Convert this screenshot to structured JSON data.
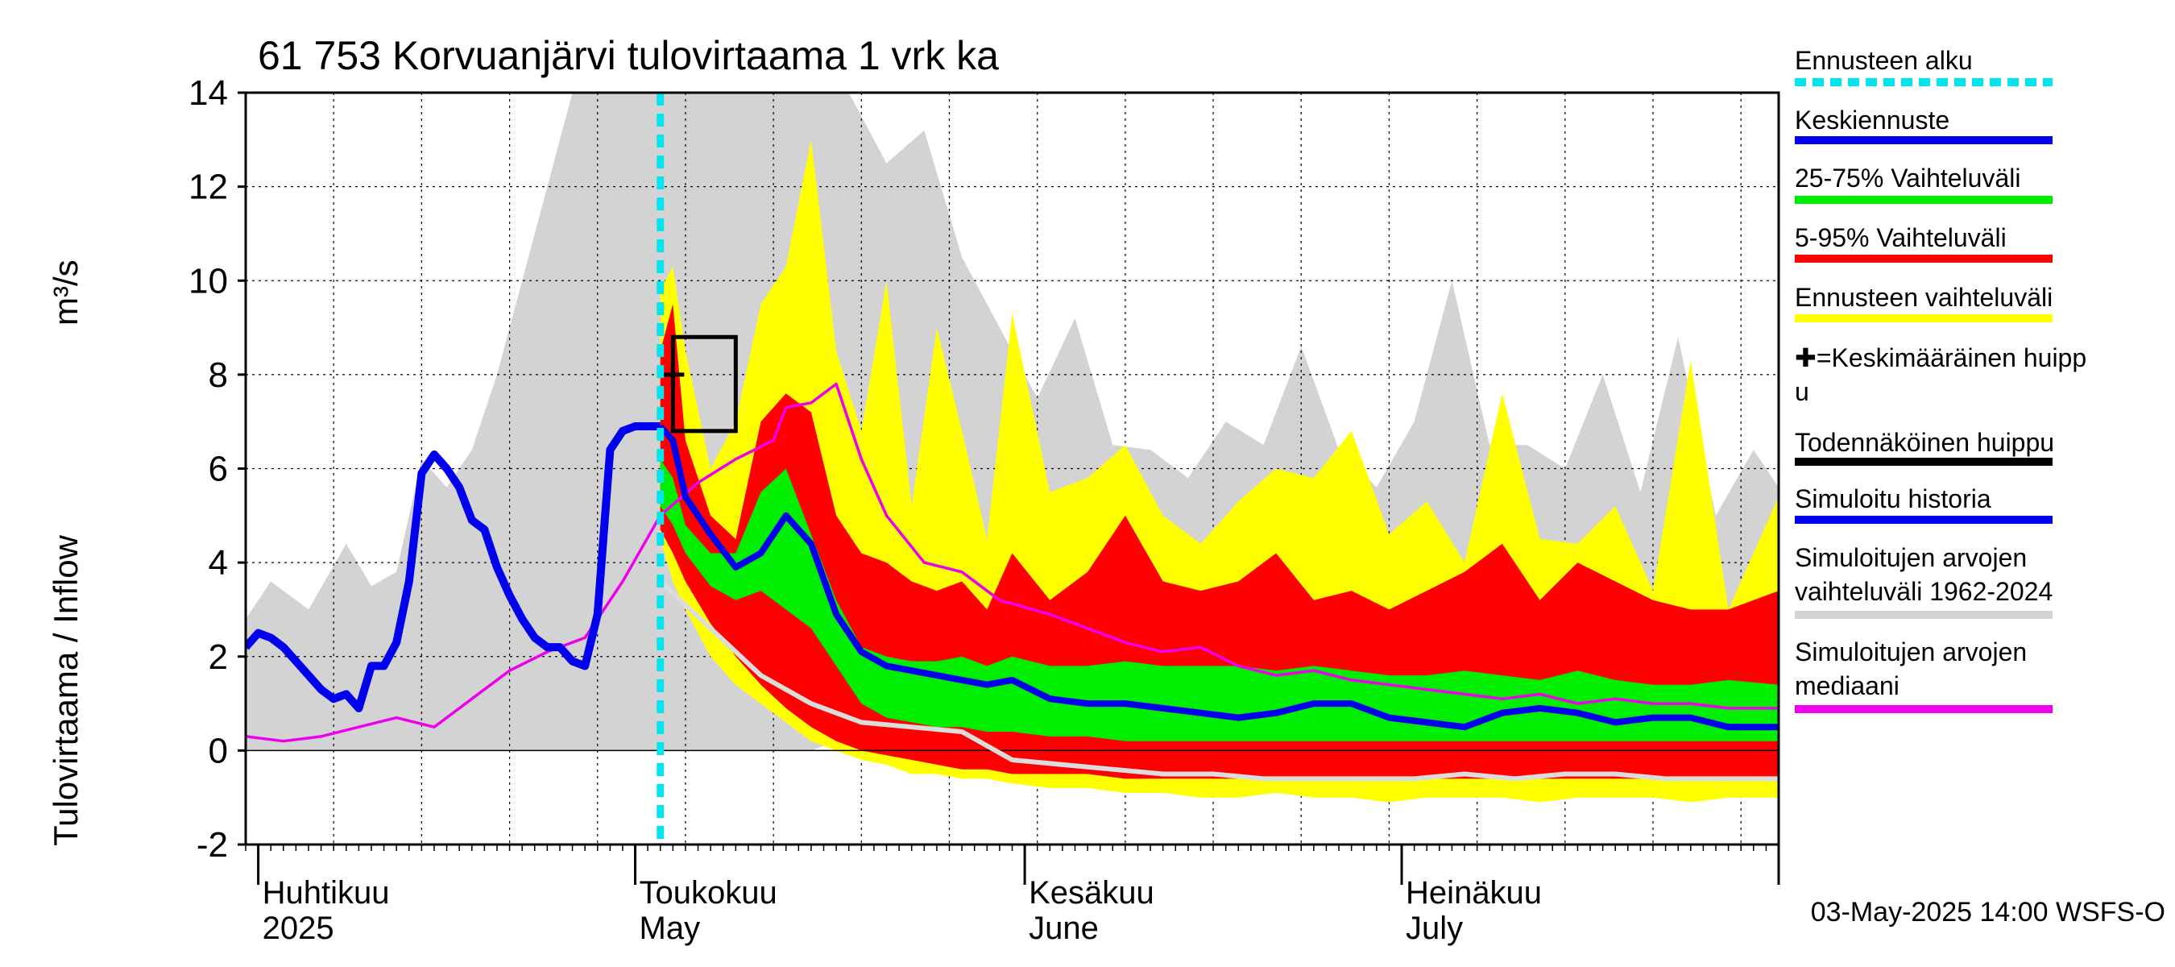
{
  "chart_data": {
    "type": "area",
    "title": "61 753 Korvuanjärvi tulovirtaama 1 vrk ka",
    "ylabel_left": "Tulovirtaama / Inflow",
    "ylabel_unit": "m³/s",
    "ylim": [
      -2,
      14
    ],
    "yticks": [
      "-2",
      "0",
      "2",
      "4",
      "6",
      "8",
      "10",
      "12",
      "14"
    ],
    "x_start": "2025-03-31",
    "x_end": "2025-07-31",
    "forecast_start": "2025-05-03",
    "months": [
      {
        "fi": "Huhtikuu",
        "en": "2025",
        "date": "2025-04-01"
      },
      {
        "fi": "Toukokuu",
        "en": "May",
        "date": "2025-05-01"
      },
      {
        "fi": "Kesäkuu",
        "en": "June",
        "date": "2025-06-01"
      },
      {
        "fi": "Heinäkuu",
        "en": "July",
        "date": "2025-07-01"
      }
    ],
    "grid": true,
    "legend_placement": "right",
    "footer": "03-May-2025 14:00 WSFS-O",
    "probable_peak": {
      "date_from": "2025-05-04",
      "date_to": "2025-05-09",
      "low": 6.8,
      "high": 8.8
    },
    "mean_peak": {
      "date": "2025-05-04",
      "value": 8.0
    },
    "legend": [
      {
        "label": "Ennusteen alku",
        "color": "#00e5ee",
        "style": "dotted"
      },
      {
        "label": "Keskiennuste",
        "color": "#0000ee",
        "style": "line"
      },
      {
        "label": "25-75% Vaihteluväli",
        "color": "#00ee00",
        "style": "line"
      },
      {
        "label": "5-95% Vaihteluväli",
        "color": "#ff0000",
        "style": "line"
      },
      {
        "label": "Ennusteen vaihteluväli",
        "color": "#ffff00",
        "style": "line"
      },
      {
        "label": "✚=Keskimääräinen huippu",
        "color": "#000000",
        "style": "none"
      },
      {
        "label": "Todennäköinen huippu",
        "color": "#000000",
        "style": "line"
      },
      {
        "label": "Simuloitu historia",
        "color": "#0000ee",
        "style": "line"
      },
      {
        "label": "Simuloitujen arvojen vaihteluväli 1962-2024",
        "color": "#d3d3d3",
        "style": "line"
      },
      {
        "label": "Simuloitujen arvojen mediaani",
        "color": "#ee00ee",
        "style": "line"
      }
    ],
    "historical_range": {
      "x": [
        "2025-03-31",
        "2025-04-02",
        "2025-04-05",
        "2025-04-08",
        "2025-04-10",
        "2025-04-12",
        "2025-04-14",
        "2025-04-16",
        "2025-04-18",
        "2025-04-20",
        "2025-04-22",
        "2025-04-24",
        "2025-04-26",
        "2025-04-28",
        "2025-04-30",
        "2025-05-02",
        "2025-05-05",
        "2025-05-10",
        "2025-05-15",
        "2025-05-18",
        "2025-05-21",
        "2025-05-24",
        "2025-05-27",
        "2025-05-30",
        "2025-06-02",
        "2025-06-05",
        "2025-06-08",
        "2025-06-11",
        "2025-06-14",
        "2025-06-17",
        "2025-06-20",
        "2025-06-23",
        "2025-06-26",
        "2025-06-29",
        "2025-07-02",
        "2025-07-05",
        "2025-07-08",
        "2025-07-11",
        "2025-07-14",
        "2025-07-17",
        "2025-07-20",
        "2025-07-23",
        "2025-07-26",
        "2025-07-29",
        "2025-07-31"
      ],
      "low": [
        0,
        0,
        0,
        0,
        0,
        0,
        0,
        0,
        0,
        0,
        0,
        0,
        0,
        0,
        0,
        0,
        0,
        0,
        0,
        0.3,
        0.8,
        0.6,
        0.2,
        0,
        0,
        0,
        0,
        0,
        0,
        0,
        0,
        0,
        0,
        0,
        0,
        0,
        0,
        0,
        0,
        0,
        0,
        0,
        0,
        0,
        0
      ],
      "high": [
        2.8,
        3.6,
        3.0,
        4.4,
        3.5,
        3.8,
        6.2,
        5.6,
        6.4,
        8.0,
        10.0,
        12.0,
        14.0,
        14.0,
        14.0,
        14.0,
        14.0,
        14.0,
        14.0,
        14.0,
        12.5,
        13.2,
        10.5,
        9.0,
        7.5,
        9.2,
        6.5,
        6.4,
        5.8,
        7.0,
        6.5,
        8.6,
        6.4,
        5.6,
        7.0,
        10.0,
        6.5,
        6.5,
        6.0,
        8.0,
        5.5,
        8.8,
        5.0,
        6.4,
        5.6
      ]
    },
    "forecast_range": {
      "x": [
        "2025-05-03",
        "2025-05-04",
        "2025-05-05",
        "2025-05-07",
        "2025-05-09",
        "2025-05-11",
        "2025-05-13",
        "2025-05-15",
        "2025-05-17",
        "2025-05-19",
        "2025-05-21",
        "2025-05-23",
        "2025-05-25",
        "2025-05-27",
        "2025-05-29",
        "2025-05-31",
        "2025-06-03",
        "2025-06-06",
        "2025-06-09",
        "2025-06-12",
        "2025-06-15",
        "2025-06-18",
        "2025-06-21",
        "2025-06-24",
        "2025-06-27",
        "2025-06-30",
        "2025-07-03",
        "2025-07-06",
        "2025-07-09",
        "2025-07-12",
        "2025-07-15",
        "2025-07-18",
        "2025-07-21",
        "2025-07-24",
        "2025-07-27",
        "2025-07-31"
      ],
      "low": [
        4.5,
        3.6,
        3.0,
        2.0,
        1.4,
        1.0,
        0.6,
        0.2,
        0,
        -0.2,
        -0.3,
        -0.5,
        -0.5,
        -0.6,
        -0.6,
        -0.7,
        -0.8,
        -0.8,
        -0.9,
        -0.9,
        -1.0,
        -1.0,
        -0.9,
        -1.0,
        -1.0,
        -1.1,
        -1.0,
        -1.0,
        -1.0,
        -1.1,
        -1.0,
        -1.0,
        -1.0,
        -1.1,
        -1.0,
        -1.0
      ],
      "high": [
        9.8,
        10.3,
        8.5,
        6.0,
        7.0,
        9.5,
        10.3,
        13.0,
        8.5,
        6.8,
        10.0,
        5.2,
        9.0,
        6.8,
        4.5,
        9.3,
        5.5,
        5.8,
        6.5,
        5.0,
        4.4,
        5.3,
        6.0,
        5.8,
        6.8,
        4.6,
        5.3,
        4.0,
        7.6,
        4.5,
        4.4,
        5.2,
        3.4,
        8.3,
        3.0,
        5.4
      ]
    },
    "p5_95": {
      "low": [
        4.7,
        4.2,
        3.6,
        2.7,
        2.0,
        1.4,
        0.9,
        0.5,
        0.2,
        0,
        -0.1,
        -0.2,
        -0.3,
        -0.4,
        -0.4,
        -0.5,
        -0.5,
        -0.5,
        -0.6,
        -0.6,
        -0.6,
        -0.6,
        -0.6,
        -0.6,
        -0.6,
        -0.6,
        -0.6,
        -0.6,
        -0.6,
        -0.6,
        -0.6,
        -0.6,
        -0.6,
        -0.6,
        -0.6,
        -0.6
      ],
      "high": [
        8.5,
        9.5,
        6.6,
        5.0,
        4.5,
        7.0,
        7.6,
        7.2,
        5.0,
        4.2,
        4.0,
        3.6,
        3.4,
        3.6,
        3.0,
        4.2,
        3.2,
        3.8,
        5.0,
        3.6,
        3.4,
        3.6,
        4.2,
        3.2,
        3.4,
        3.0,
        3.4,
        3.8,
        4.4,
        3.2,
        4.0,
        3.6,
        3.2,
        3.0,
        3.0,
        3.4
      ]
    },
    "p25_75": {
      "low": [
        5.2,
        4.8,
        4.2,
        3.5,
        3.2,
        3.4,
        3.0,
        2.6,
        1.8,
        1.0,
        0.7,
        0.6,
        0.5,
        0.5,
        0.4,
        0.4,
        0.3,
        0.3,
        0.2,
        0.2,
        0.2,
        0.2,
        0.2,
        0.2,
        0.2,
        0.2,
        0.2,
        0.2,
        0.2,
        0.2,
        0.2,
        0.2,
        0.2,
        0.2,
        0.2,
        0.2
      ],
      "high": [
        6.2,
        5.8,
        4.8,
        4.2,
        4.2,
        5.5,
        6.0,
        4.6,
        3.2,
        2.2,
        2.0,
        1.9,
        1.9,
        2.0,
        1.8,
        2.0,
        1.8,
        1.8,
        1.9,
        1.8,
        1.8,
        1.8,
        1.7,
        1.8,
        1.7,
        1.6,
        1.6,
        1.7,
        1.6,
        1.5,
        1.7,
        1.5,
        1.4,
        1.4,
        1.5,
        1.4
      ]
    },
    "simulated_history": {
      "x": [
        "2025-03-31",
        "2025-04-01",
        "2025-04-02",
        "2025-04-03",
        "2025-04-04",
        "2025-04-05",
        "2025-04-06",
        "2025-04-07",
        "2025-04-08",
        "2025-04-09",
        "2025-04-10",
        "2025-04-11",
        "2025-04-12",
        "2025-04-13",
        "2025-04-14",
        "2025-04-15",
        "2025-04-16",
        "2025-04-17",
        "2025-04-18",
        "2025-04-19",
        "2025-04-20",
        "2025-04-21",
        "2025-04-22",
        "2025-04-23",
        "2025-04-24",
        "2025-04-25",
        "2025-04-26",
        "2025-04-27",
        "2025-04-28",
        "2025-04-29",
        "2025-04-30",
        "2025-05-01",
        "2025-05-02",
        "2025-05-03"
      ],
      "y": [
        2.2,
        2.5,
        2.4,
        2.2,
        1.9,
        1.6,
        1.3,
        1.1,
        1.2,
        0.9,
        1.8,
        1.8,
        2.3,
        3.6,
        5.9,
        6.3,
        6.0,
        5.6,
        4.9,
        4.7,
        3.9,
        3.3,
        2.8,
        2.4,
        2.2,
        2.2,
        1.9,
        1.8,
        2.9,
        6.4,
        6.8,
        6.9,
        6.9,
        6.9
      ]
    },
    "forecast_median": {
      "x": [
        "2025-05-03",
        "2025-05-04",
        "2025-05-05",
        "2025-05-07",
        "2025-05-09",
        "2025-05-11",
        "2025-05-13",
        "2025-05-15",
        "2025-05-17",
        "2025-05-19",
        "2025-05-21",
        "2025-05-23",
        "2025-05-25",
        "2025-05-27",
        "2025-05-29",
        "2025-05-31",
        "2025-06-03",
        "2025-06-06",
        "2025-06-09",
        "2025-06-12",
        "2025-06-15",
        "2025-06-18",
        "2025-06-21",
        "2025-06-24",
        "2025-06-27",
        "2025-06-30",
        "2025-07-03",
        "2025-07-06",
        "2025-07-09",
        "2025-07-12",
        "2025-07-15",
        "2025-07-18",
        "2025-07-21",
        "2025-07-24",
        "2025-07-27",
        "2025-07-31"
      ],
      "y": [
        6.9,
        6.6,
        5.4,
        4.6,
        3.9,
        4.2,
        5.0,
        4.4,
        2.9,
        2.1,
        1.8,
        1.7,
        1.6,
        1.5,
        1.4,
        1.5,
        1.1,
        1.0,
        1.0,
        0.9,
        0.8,
        0.7,
        0.8,
        1.0,
        1.0,
        0.7,
        0.6,
        0.5,
        0.8,
        0.9,
        0.8,
        0.6,
        0.7,
        0.7,
        0.5,
        0.5
      ]
    },
    "historical_median": {
      "x": [
        "2025-03-31",
        "2025-04-03",
        "2025-04-06",
        "2025-04-09",
        "2025-04-12",
        "2025-04-15",
        "2025-04-18",
        "2025-04-21",
        "2025-04-24",
        "2025-04-27",
        "2025-04-30",
        "2025-05-03",
        "2025-05-06",
        "2025-05-09",
        "2025-05-12",
        "2025-05-13",
        "2025-05-15",
        "2025-05-17",
        "2025-05-19",
        "2025-05-21",
        "2025-05-24",
        "2025-05-27",
        "2025-05-30",
        "2025-06-03",
        "2025-06-06",
        "2025-06-09",
        "2025-06-12",
        "2025-06-15",
        "2025-06-18",
        "2025-06-21",
        "2025-06-24",
        "2025-06-27",
        "2025-06-30",
        "2025-07-03",
        "2025-07-06",
        "2025-07-09",
        "2025-07-12",
        "2025-07-15",
        "2025-07-18",
        "2025-07-21",
        "2025-07-24",
        "2025-07-27",
        "2025-07-31"
      ],
      "y": [
        0.3,
        0.2,
        0.3,
        0.5,
        0.7,
        0.5,
        1.1,
        1.7,
        2.1,
        2.4,
        3.6,
        5.0,
        5.7,
        6.2,
        6.6,
        7.3,
        7.4,
        7.8,
        6.2,
        5.0,
        4.0,
        3.8,
        3.2,
        2.9,
        2.6,
        2.3,
        2.1,
        2.2,
        1.8,
        1.6,
        1.7,
        1.5,
        1.4,
        1.3,
        1.2,
        1.1,
        1.2,
        1.0,
        1.1,
        1.0,
        1.0,
        0.9,
        0.9
      ]
    },
    "forecast_min": {
      "x": [
        "2025-05-03",
        "2025-05-07",
        "2025-05-11",
        "2025-05-15",
        "2025-05-19",
        "2025-05-23",
        "2025-05-27",
        "2025-05-31",
        "2025-06-04",
        "2025-06-08",
        "2025-06-12",
        "2025-06-16",
        "2025-06-20",
        "2025-06-24",
        "2025-06-28",
        "2025-07-02",
        "2025-07-06",
        "2025-07-10",
        "2025-07-14",
        "2025-07-18",
        "2025-07-22",
        "2025-07-26",
        "2025-07-31"
      ],
      "y": [
        3.6,
        2.6,
        1.6,
        1.0,
        0.6,
        0.5,
        0.4,
        -0.2,
        -0.3,
        -0.4,
        -0.5,
        -0.5,
        -0.6,
        -0.6,
        -0.6,
        -0.6,
        -0.5,
        -0.6,
        -0.5,
        -0.5,
        -0.6,
        -0.6,
        -0.6
      ]
    }
  }
}
